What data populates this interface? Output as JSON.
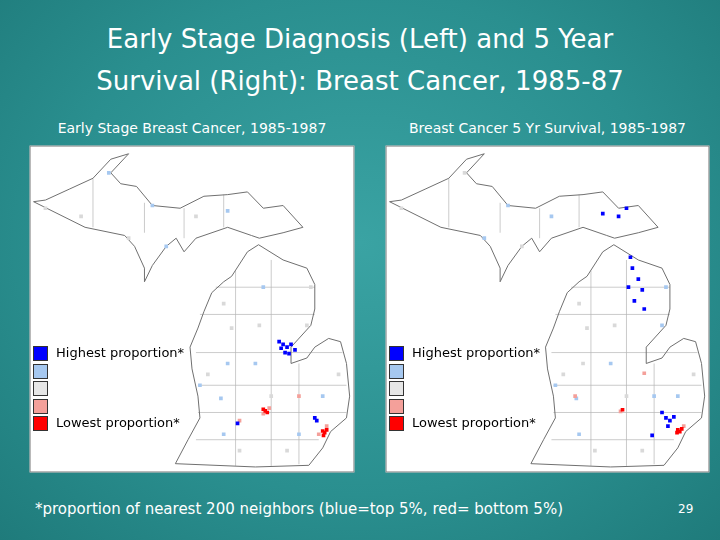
{
  "title": [
    "Early Stage Diagnosis (Left) and 5 Year",
    "Survival (Right): Breast Cancer, 1985-87"
  ],
  "chart_data": [
    {
      "type": "scatter",
      "title": "Early Stage Breast Cancer, 1985-1987",
      "xlim": [
        -90.5,
        -82.3
      ],
      "ylim": [
        41.6,
        47.6
      ],
      "tick_labels": false,
      "grid": false,
      "series": [
        {
          "color": "#d9d9d9",
          "x": [
            -90.1,
            -88.0,
            -86.3,
            -89.2,
            -85.6,
            -84.7,
            -83.5,
            -85.4,
            -86.0,
            -84.4,
            -85.2,
            -84.0,
            -82.7,
            -83.4
          ],
          "y": [
            46.45,
            45.9,
            46.3,
            46.3,
            44.7,
            44.3,
            44.3,
            44.25,
            43.4,
            43.0,
            42.0,
            42.0,
            43.4,
            45.0
          ]
        },
        {
          "color": "#a6c8f0",
          "x": [
            -87.4,
            -88.5,
            -87.05,
            -85.5,
            -84.6,
            -85.5,
            -84.8,
            -85.67,
            -86.2,
            -83.1,
            -85.6,
            -83.7
          ],
          "y": [
            46.5,
            47.1,
            45.75,
            46.4,
            45.0,
            43.6,
            43.6,
            42.96,
            43.2,
            43.0,
            42.3,
            42.3
          ]
        },
        {
          "color": "#f4a09a",
          "x": [
            -84.45,
            -84.6,
            -83.7,
            -83.2,
            -83.0,
            -85.2
          ],
          "y": [
            42.78,
            42.68,
            43.0,
            42.3,
            42.45,
            42.55
          ]
        },
        {
          "color": "#ff0000",
          "x": [
            -84.55,
            -84.5,
            -84.6,
            -83.05,
            -83.1,
            -83.0,
            -83.08
          ],
          "y": [
            42.73,
            42.7,
            42.76,
            42.33,
            42.36,
            42.38,
            42.28
          ]
        },
        {
          "color": "#0000ff",
          "x": [
            -84.2,
            -84.1,
            -84.0,
            -83.9,
            -83.8,
            -84.05,
            -83.95,
            -84.15,
            -83.3,
            -83.25,
            -85.25
          ],
          "y": [
            44.0,
            43.95,
            43.9,
            43.95,
            43.85,
            43.8,
            43.78,
            43.88,
            42.6,
            42.55,
            42.5
          ]
        }
      ]
    },
    {
      "type": "scatter",
      "title": "Breast Cancer 5 Yr Survival, 1985-1987",
      "xlim": [
        -90.5,
        -82.3
      ],
      "ylim": [
        41.6,
        47.6
      ],
      "tick_labels": false,
      "grid": false,
      "series": [
        {
          "color": "#d9d9d9",
          "x": [
            -90.1,
            -88.5,
            -87.05,
            -85.6,
            -84.7,
            -85.4,
            -85.5,
            -86.0,
            -84.4,
            -85.2,
            -84.0,
            -82.7
          ],
          "y": [
            46.45,
            47.1,
            45.75,
            44.7,
            44.3,
            44.25,
            43.6,
            43.4,
            43.0,
            42.0,
            42.0,
            43.4
          ]
        },
        {
          "color": "#a6c8f0",
          "x": [
            -87.4,
            -88.0,
            -86.3,
            -84.8,
            -85.67,
            -86.2,
            -83.1,
            -85.6,
            -83.5,
            -83.4,
            -83.7
          ],
          "y": [
            46.5,
            45.9,
            46.3,
            43.6,
            42.96,
            43.2,
            43.0,
            42.3,
            44.3,
            45.0,
            43.0
          ]
        },
        {
          "color": "#f4a09a",
          "x": [
            -84.55,
            -85.7,
            -83.95,
            -82.95
          ],
          "y": [
            42.72,
            43.0,
            43.42,
            42.45
          ]
        },
        {
          "color": "#ff0000",
          "x": [
            -83.05,
            -83.1,
            -83.0,
            -83.12,
            -84.5
          ],
          "y": [
            42.35,
            42.38,
            42.4,
            42.33,
            42.75
          ]
        },
        {
          "color": "#0000ff",
          "x": [
            -84.4,
            -84.6,
            -85.0,
            -84.3,
            -84.25,
            -84.1,
            -84.0,
            -84.35,
            -84.2,
            -83.95,
            -83.5,
            -83.4,
            -83.3,
            -83.2,
            -83.35,
            -83.75
          ],
          "y": [
            46.45,
            46.3,
            46.35,
            45.55,
            45.35,
            45.15,
            44.95,
            45.0,
            44.75,
            44.6,
            42.7,
            42.6,
            42.55,
            42.62,
            42.45,
            42.28
          ]
        }
      ]
    }
  ],
  "key": [
    {
      "color": "#0000ff",
      "label": "Highest proportion*"
    },
    {
      "color": "#a6c8f0",
      "label": null
    },
    {
      "color": "#e6e6e6",
      "label": null
    },
    {
      "color": "#f4a09a",
      "label": null
    },
    {
      "color": "#ff0000",
      "label": "Lowest proportion*"
    }
  ],
  "footnote": "*proportion of nearest 200 neighbors (blue=top 5%, red= bottom 5%)",
  "page_number": 29
}
